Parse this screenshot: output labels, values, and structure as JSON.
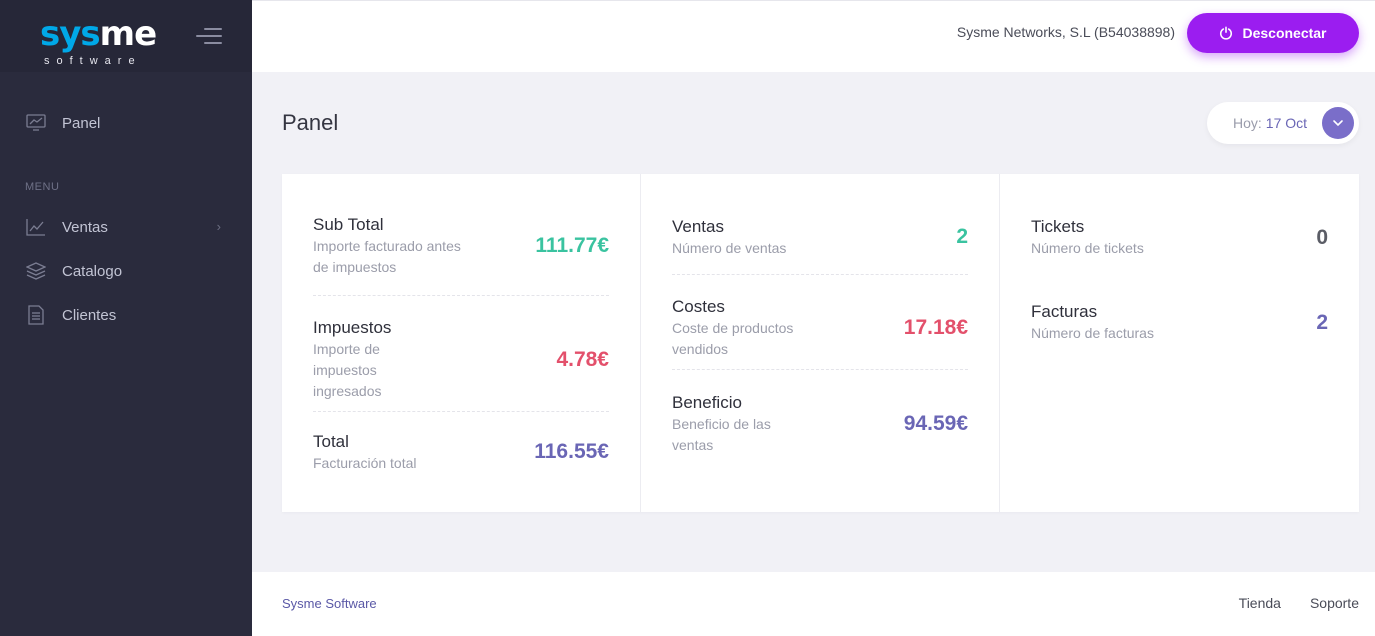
{
  "brand": {
    "logo_a": "sys",
    "logo_b": "me",
    "logo_sub": "software"
  },
  "sidebar": {
    "panel_label": "Panel",
    "menu_heading": "MENU",
    "items": [
      {
        "label": "Ventas",
        "icon": "chart-line-icon",
        "has_children": true
      },
      {
        "label": "Catalogo",
        "icon": "layers-icon"
      },
      {
        "label": "Clientes",
        "icon": "document-icon"
      }
    ]
  },
  "header": {
    "company": "Sysme Networks, S.L (B54038898)",
    "logout_label": "Desconectar"
  },
  "page": {
    "title": "Panel",
    "date_label": "Hoy:",
    "date_value": "17 Oct"
  },
  "stats": {
    "col1": [
      {
        "name": "Sub Total",
        "desc": "Importe facturado antes de impuestos",
        "value": "111.77€"
      },
      {
        "name": "Impuestos",
        "desc": "Importe de impuestos ingresados",
        "value": "4.78€"
      },
      {
        "name": "Total",
        "desc": "Facturación total",
        "value": "116.55€"
      }
    ],
    "col2": [
      {
        "name": "Ventas",
        "desc": "Número de ventas",
        "value": "2"
      },
      {
        "name": "Costes",
        "desc": "Coste de productos vendidos",
        "value": "17.18€"
      },
      {
        "name": "Beneficio",
        "desc": "Beneficio de las ventas",
        "value": "94.59€"
      }
    ],
    "col3": [
      {
        "name": "Tickets",
        "desc": "Número de tickets",
        "value": "0"
      },
      {
        "name": "Facturas",
        "desc": "Número de facturas",
        "value": "2"
      }
    ]
  },
  "colors": {
    "accent": "#9b1df0",
    "sidebar": "#2a2b3d",
    "green": "#3ac3a0",
    "red": "#e3506b",
    "purple": "#6a66b5"
  },
  "footer": {
    "brand": "Sysme Software",
    "links": [
      "Tienda",
      "Soporte"
    ]
  }
}
